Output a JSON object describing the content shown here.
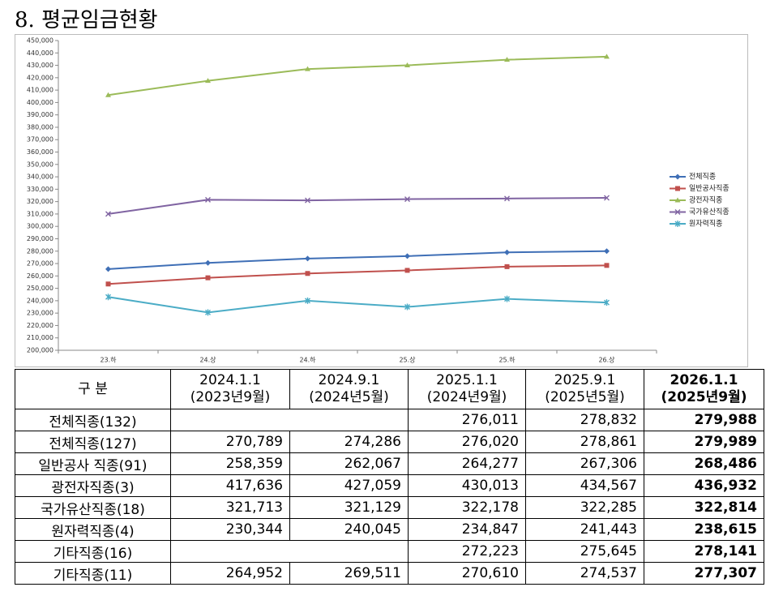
{
  "title": "8. 평균임금현황",
  "chart_data": {
    "type": "line",
    "categories": [
      "23.하",
      "24.상",
      "24.하",
      "25.상",
      "25.하",
      "26.상"
    ],
    "ylim": [
      200000,
      450000
    ],
    "yticks": [
      {
        "value": 200000,
        "label": "200,000"
      },
      {
        "value": 210000,
        "label": "210,000"
      },
      {
        "value": 220000,
        "label": "220,000"
      },
      {
        "value": 230000,
        "label": "230,000"
      },
      {
        "value": 240000,
        "label": "240,000"
      },
      {
        "value": 250000,
        "label": "250,000"
      },
      {
        "value": 260000,
        "label": "260,000"
      },
      {
        "value": 270000,
        "label": "270,000"
      },
      {
        "value": 280000,
        "label": "280,000"
      },
      {
        "value": 290000,
        "label": "290,000"
      },
      {
        "value": 300000,
        "label": "300,000"
      },
      {
        "value": 310000,
        "label": "310,000"
      },
      {
        "value": 320000,
        "label": "320,000"
      },
      {
        "value": 330000,
        "label": "330,000"
      },
      {
        "value": 340000,
        "label": "340,000"
      },
      {
        "value": 350000,
        "label": "350,000"
      },
      {
        "value": 360000,
        "label": "360,000"
      },
      {
        "value": 370000,
        "label": "370,000"
      },
      {
        "value": 380000,
        "label": "380,000"
      },
      {
        "value": 390000,
        "label": "390,000"
      },
      {
        "value": 400000,
        "label": "400,000"
      },
      {
        "value": 410000,
        "label": "410,000"
      },
      {
        "value": 420000,
        "label": "420,000"
      },
      {
        "value": 430000,
        "label": "430,000"
      },
      {
        "value": 440000,
        "label": "440,000"
      },
      {
        "value": 450000,
        "label": "450,000"
      }
    ],
    "series": [
      {
        "name": "전체직종",
        "color": "#3f6fb6",
        "values": [
          265500,
          270500,
          274000,
          276000,
          279000,
          280000
        ]
      },
      {
        "name": "일반공사직종",
        "color": "#c0504d",
        "values": [
          253500,
          258500,
          262000,
          264500,
          267500,
          268500
        ]
      },
      {
        "name": "광전자직종",
        "color": "#9bbb59",
        "values": [
          406000,
          417500,
          427000,
          430000,
          434500,
          437000
        ]
      },
      {
        "name": "국가유산직종",
        "color": "#8064a2",
        "values": [
          310000,
          321500,
          321000,
          322000,
          322500,
          323000
        ]
      },
      {
        "name": "원자력직종",
        "color": "#4bacc6",
        "values": [
          243000,
          230500,
          240000,
          235000,
          241500,
          238500
        ]
      }
    ],
    "grid": false,
    "legend": "right"
  },
  "table": {
    "header": [
      "구 분",
      [
        "2024.1.1",
        "(2023년9월)"
      ],
      [
        "2024.9.1",
        "(2024년5월)"
      ],
      [
        "2025.1.1",
        "(2024년9월)"
      ],
      [
        "2025.9.1",
        "(2025년5월)"
      ],
      [
        "2026.1.1",
        "(2025년9월)"
      ]
    ],
    "rows": [
      {
        "label": "전체직종(132)",
        "values": [
          "276,011",
          "278,832",
          "279,988"
        ]
      },
      {
        "label": "전체직종(127)",
        "values": [
          "270,789",
          "274,286",
          "276,020",
          "278,861",
          "279,989"
        ]
      },
      {
        "label": "일반공사 직종(91)",
        "values": [
          "258,359",
          "262,067",
          "264,277",
          "267,306",
          "268,486"
        ]
      },
      {
        "label": "광전자직종(3)",
        "values": [
          "417,636",
          "427,059",
          "430,013",
          "434,567",
          "436,932"
        ]
      },
      {
        "label": "국가유산직종(18)",
        "values": [
          "321,713",
          "321,129",
          "322,178",
          "322,285",
          "322,814"
        ]
      },
      {
        "label": "원자력직종(4)",
        "values": [
          "230,344",
          "240,045",
          "234,847",
          "241,443",
          "238,615"
        ]
      },
      {
        "label": "기타직종(16)",
        "values": [
          "272,223",
          "275,645",
          "278,141"
        ]
      },
      {
        "label": "기타직종(11)",
        "values": [
          "264,952",
          "269,511",
          "270,610",
          "274,537",
          "277,307"
        ]
      }
    ]
  }
}
